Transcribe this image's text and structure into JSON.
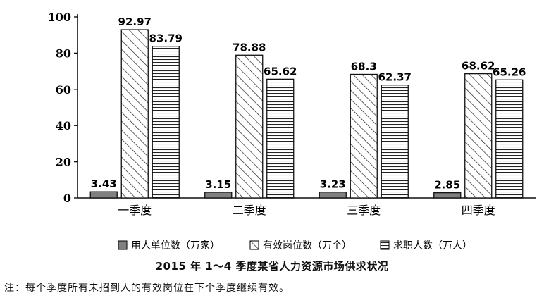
{
  "chart_data": {
    "type": "bar",
    "categories": [
      "一季度",
      "二季度",
      "三季度",
      "四季度"
    ],
    "series": [
      {
        "name": "用人单位数（万家）",
        "values": [
          3.43,
          3.15,
          3.23,
          2.85
        ],
        "fill": "#808080"
      },
      {
        "name": "有效岗位数（万个）",
        "values": [
          92.97,
          78.88,
          68.3,
          68.62
        ],
        "fill": "diagonal-hatch"
      },
      {
        "name": "求职人数（万人）",
        "values": [
          83.79,
          65.62,
          62.37,
          65.26
        ],
        "fill": "horizontal-hatch"
      }
    ],
    "ylim": [
      0,
      100
    ],
    "yticks": [
      0,
      20,
      40,
      60,
      80,
      100
    ],
    "legend_position": "bottom",
    "grid": false,
    "title": "2015 年 1～4 季度某省人力资源市场供求状况"
  },
  "note": "注：每个季度所有未招到人的有效岗位在下个季度继续有效。"
}
